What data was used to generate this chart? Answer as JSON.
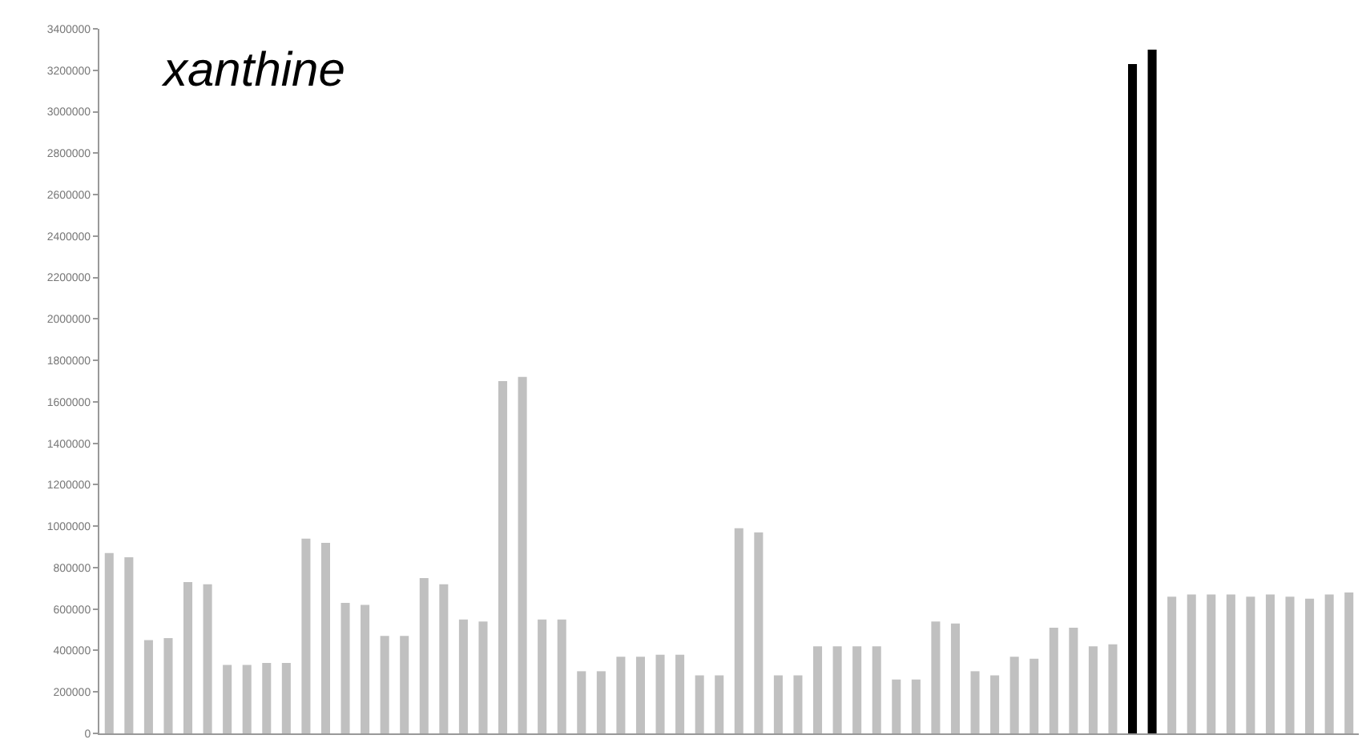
{
  "chart_data": {
    "type": "bar",
    "title": "xanthine",
    "categories": [
      null,
      null,
      null,
      null,
      null,
      null,
      null,
      null,
      null,
      null,
      null,
      null,
      null,
      null,
      null,
      null,
      null,
      null,
      null,
      null,
      null,
      null,
      null,
      null,
      null,
      null,
      null,
      null,
      null,
      null,
      null,
      null,
      null,
      null,
      null,
      null,
      null,
      null,
      null,
      null,
      null,
      null,
      null,
      null,
      null,
      null,
      null,
      null,
      null,
      null,
      null,
      null,
      null,
      null,
      null,
      null,
      null,
      null,
      null,
      null,
      null,
      null,
      null,
      null
    ],
    "values": [
      870000,
      850000,
      450000,
      460000,
      730000,
      720000,
      330000,
      330000,
      340000,
      340000,
      940000,
      920000,
      630000,
      620000,
      470000,
      470000,
      750000,
      720000,
      550000,
      540000,
      1700000,
      1720000,
      550000,
      550000,
      300000,
      300000,
      370000,
      370000,
      380000,
      380000,
      280000,
      280000,
      990000,
      970000,
      280000,
      280000,
      420000,
      420000,
      420000,
      420000,
      260000,
      260000,
      540000,
      530000,
      300000,
      280000,
      370000,
      360000,
      510000,
      510000,
      420000,
      430000,
      3230000,
      3300000,
      660000,
      670000,
      670000,
      670000,
      660000,
      670000,
      660000,
      650000,
      670000,
      680000
    ],
    "colors": [
      "#c0c0c0",
      "#c0c0c0",
      "#c0c0c0",
      "#c0c0c0",
      "#c0c0c0",
      "#c0c0c0",
      "#c0c0c0",
      "#c0c0c0",
      "#c0c0c0",
      "#c0c0c0",
      "#c0c0c0",
      "#c0c0c0",
      "#c0c0c0",
      "#c0c0c0",
      "#c0c0c0",
      "#c0c0c0",
      "#c0c0c0",
      "#c0c0c0",
      "#c0c0c0",
      "#c0c0c0",
      "#c0c0c0",
      "#c0c0c0",
      "#c0c0c0",
      "#c0c0c0",
      "#c0c0c0",
      "#c0c0c0",
      "#c0c0c0",
      "#c0c0c0",
      "#c0c0c0",
      "#c0c0c0",
      "#c0c0c0",
      "#c0c0c0",
      "#c0c0c0",
      "#c0c0c0",
      "#c0c0c0",
      "#c0c0c0",
      "#c0c0c0",
      "#c0c0c0",
      "#c0c0c0",
      "#c0c0c0",
      "#c0c0c0",
      "#c0c0c0",
      "#c0c0c0",
      "#c0c0c0",
      "#c0c0c0",
      "#c0c0c0",
      "#c0c0c0",
      "#c0c0c0",
      "#c0c0c0",
      "#c0c0c0",
      "#c0c0c0",
      "#c0c0c0",
      "#000000",
      "#000000",
      "#c0c0c0",
      "#c0c0c0",
      "#c0c0c0",
      "#c0c0c0",
      "#c0c0c0",
      "#c0c0c0",
      "#c0c0c0",
      "#c0c0c0",
      "#c0c0c0",
      "#c0c0c0"
    ],
    "ylim": [
      0,
      3400000
    ],
    "yticks": [
      0,
      200000,
      400000,
      600000,
      800000,
      1000000,
      1200000,
      1400000,
      1600000,
      1800000,
      2000000,
      2200000,
      2400000,
      2600000,
      2800000,
      3000000,
      3200000,
      3400000
    ],
    "grid": false,
    "tick_labels": "y"
  }
}
